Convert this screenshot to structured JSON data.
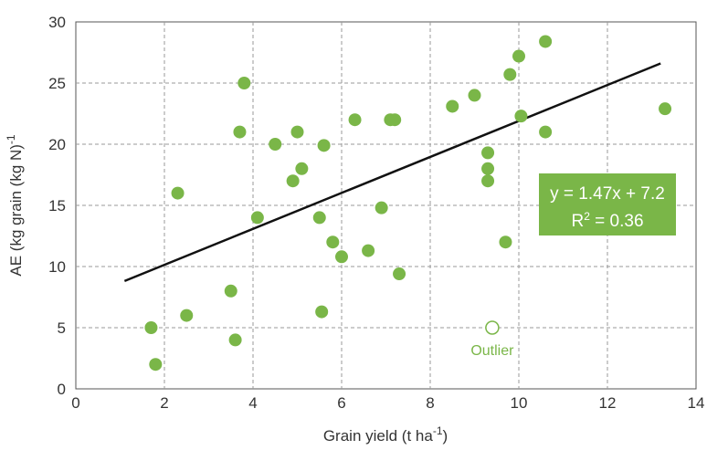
{
  "chart_data": {
    "type": "scatter",
    "title": "",
    "xlabel": "Grain yield (t ha",
    "xlabel_sup": "-1",
    "xlabel_end": ")",
    "ylabel": "AE (kg grain (kg N)",
    "ylabel_sup": "-1",
    "xlim": [
      0,
      14
    ],
    "ylim": [
      0,
      30
    ],
    "xticks": [
      "0",
      "2",
      "4",
      "6",
      "8",
      "10",
      "12",
      "14"
    ],
    "yticks": [
      "0",
      "5",
      "10",
      "15",
      "20",
      "25",
      "30"
    ],
    "grid": true,
    "point_color": "#7ab648",
    "points": [
      {
        "x": 1.7,
        "y": 5
      },
      {
        "x": 1.8,
        "y": 2
      },
      {
        "x": 2.3,
        "y": 16
      },
      {
        "x": 2.5,
        "y": 6
      },
      {
        "x": 3.5,
        "y": 8
      },
      {
        "x": 3.6,
        "y": 4
      },
      {
        "x": 3.7,
        "y": 21
      },
      {
        "x": 3.8,
        "y": 25
      },
      {
        "x": 4.1,
        "y": 14
      },
      {
        "x": 4.5,
        "y": 20
      },
      {
        "x": 4.9,
        "y": 17
      },
      {
        "x": 5.0,
        "y": 21
      },
      {
        "x": 5.1,
        "y": 18
      },
      {
        "x": 5.5,
        "y": 14
      },
      {
        "x": 5.55,
        "y": 6.3
      },
      {
        "x": 5.6,
        "y": 19.9
      },
      {
        "x": 5.8,
        "y": 12
      },
      {
        "x": 6.0,
        "y": 10.8
      },
      {
        "x": 6.3,
        "y": 22
      },
      {
        "x": 6.6,
        "y": 11.3
      },
      {
        "x": 6.9,
        "y": 14.8
      },
      {
        "x": 7.1,
        "y": 22
      },
      {
        "x": 7.2,
        "y": 22
      },
      {
        "x": 7.3,
        "y": 9.4
      },
      {
        "x": 8.5,
        "y": 23.1
      },
      {
        "x": 9.0,
        "y": 24
      },
      {
        "x": 9.3,
        "y": 17
      },
      {
        "x": 9.3,
        "y": 18
      },
      {
        "x": 9.3,
        "y": 19.3
      },
      {
        "x": 9.7,
        "y": 12
      },
      {
        "x": 9.8,
        "y": 25.7
      },
      {
        "x": 10.0,
        "y": 27.2
      },
      {
        "x": 10.05,
        "y": 22.3
      },
      {
        "x": 10.6,
        "y": 28.4
      },
      {
        "x": 10.6,
        "y": 21
      },
      {
        "x": 13.3,
        "y": 22.9
      }
    ],
    "outlier": {
      "x": 9.4,
      "y": 5,
      "label": "Outlier"
    },
    "trendline": {
      "x": [
        1.1,
        13.2
      ],
      "slope": 1.47,
      "intercept": 7.2,
      "color": "#111111"
    },
    "annotation": {
      "equation": "y = 1.47x + 7.2",
      "r2_prefix": "R",
      "r2_sup": "2",
      "r2_value": " = 0.36",
      "box_color": "#7ab648"
    }
  }
}
